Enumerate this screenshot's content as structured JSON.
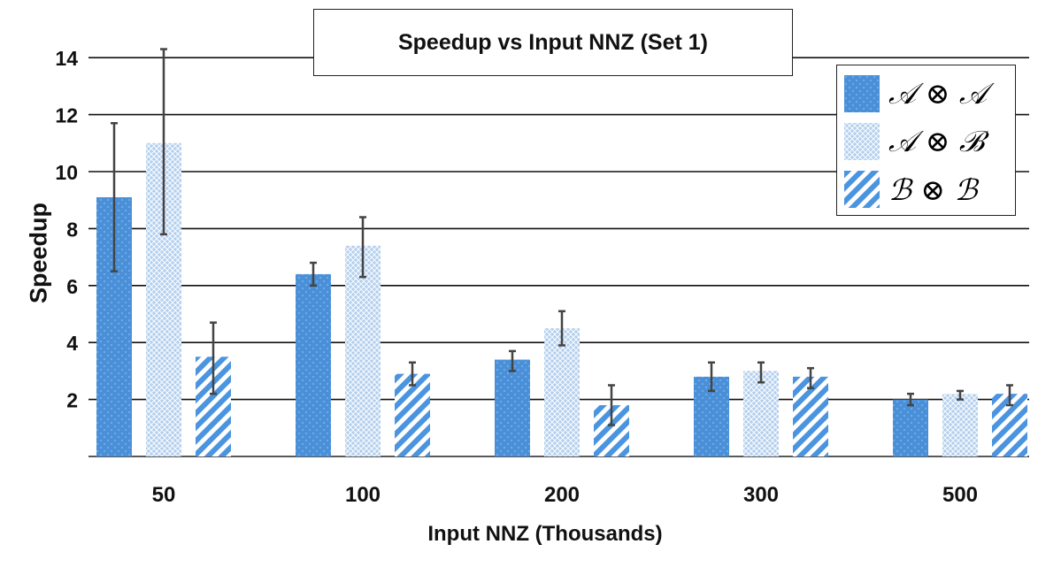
{
  "chart_data": {
    "type": "bar",
    "title": "Speedup vs Input NNZ (Set 1)",
    "xlabel": "Input NNZ (Thousands)",
    "ylabel": "Speedup",
    "categories": [
      "50",
      "100",
      "200",
      "300",
      "500"
    ],
    "yticks": [
      2,
      4,
      6,
      8,
      10,
      12,
      14
    ],
    "ylim": [
      0,
      14
    ],
    "grid": true,
    "legend_position": "top-right",
    "series": [
      {
        "name": "𝒜 ⊗ 𝒜",
        "pattern": "dots",
        "color": "#4a90d9",
        "values": [
          9.1,
          6.4,
          3.4,
          2.8,
          2.0
        ],
        "err_low": [
          6.5,
          6.0,
          3.0,
          2.3,
          1.8
        ],
        "err_high": [
          11.7,
          6.8,
          3.7,
          3.3,
          2.2
        ]
      },
      {
        "name": "𝒜 ⊗ ℬ",
        "pattern": "diamond",
        "color": "#a9c9ed",
        "values": [
          11.0,
          7.4,
          4.5,
          3.0,
          2.2
        ],
        "err_low": [
          7.8,
          6.3,
          3.9,
          2.6,
          2.0
        ],
        "err_high": [
          14.3,
          8.4,
          5.1,
          3.3,
          2.3
        ]
      },
      {
        "name": "ℬ ⊗ ℬ",
        "pattern": "stripes",
        "color": "#5aa0e6",
        "values": [
          3.5,
          2.9,
          1.8,
          2.8,
          2.2
        ],
        "err_low": [
          2.2,
          2.5,
          1.1,
          2.4,
          1.8
        ],
        "err_high": [
          4.7,
          3.3,
          2.5,
          3.1,
          2.5
        ]
      }
    ]
  }
}
